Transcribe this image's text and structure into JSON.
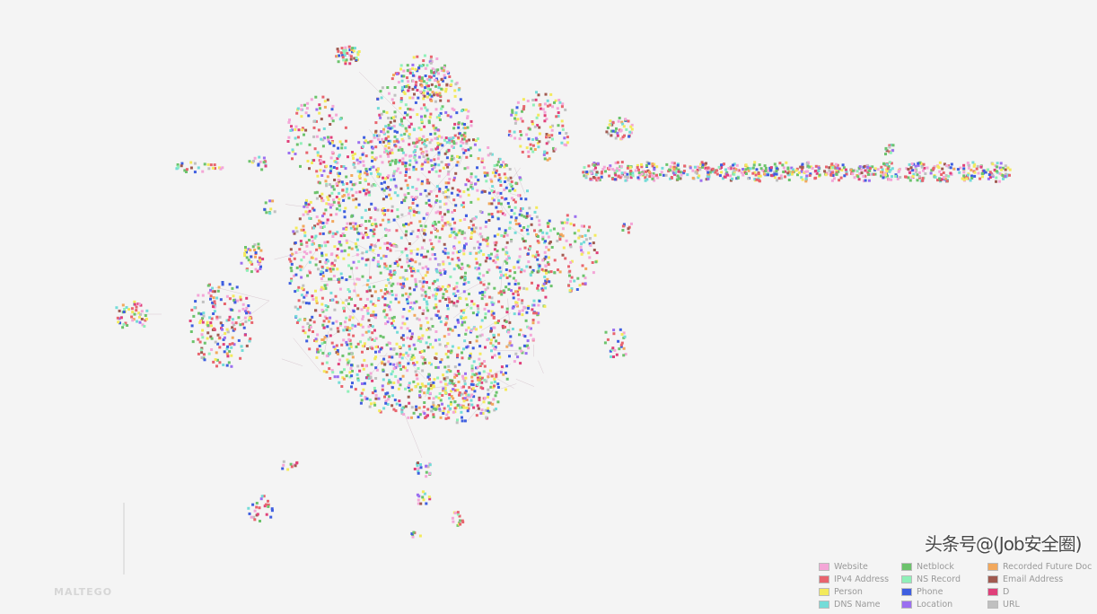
{
  "graph": {
    "node_colors": {
      "website": "#f4a6d7",
      "ipv4": "#e8646e",
      "person": "#f3ea5c",
      "dns": "#74dcd8",
      "netblock": "#6cc36c",
      "ns": "#8ff0b8",
      "phone": "#3e5ee0",
      "location": "#9b6ff0",
      "recorded_future": "#f2a85c",
      "email": "#a05a50",
      "domain": "#e0407a",
      "url": "#c0c0c0"
    },
    "edge_color": "#d8c8d0"
  },
  "legend": {
    "items": [
      {
        "label": "Website",
        "color": "#f4a6d7"
      },
      {
        "label": "Netblock",
        "color": "#6cc36c"
      },
      {
        "label": "Recorded Future Doc",
        "color": "#f2a85c"
      },
      {
        "label": "IPv4 Address",
        "color": "#e8646e"
      },
      {
        "label": "NS Record",
        "color": "#8ff0b8"
      },
      {
        "label": "Email Address",
        "color": "#a05a50"
      },
      {
        "label": "Person",
        "color": "#f3ea5c"
      },
      {
        "label": "Phone",
        "color": "#3e5ee0"
      },
      {
        "label": "D",
        "color": "#e0407a"
      },
      {
        "label": "DNS Name",
        "color": "#74dcd8"
      },
      {
        "label": "Location",
        "color": "#9b6ff0"
      },
      {
        "label": "URL",
        "color": "#c0c0c0"
      }
    ]
  },
  "logo_watermark": "MALTEGO",
  "watermark": "头条号@(Job安全圈)"
}
